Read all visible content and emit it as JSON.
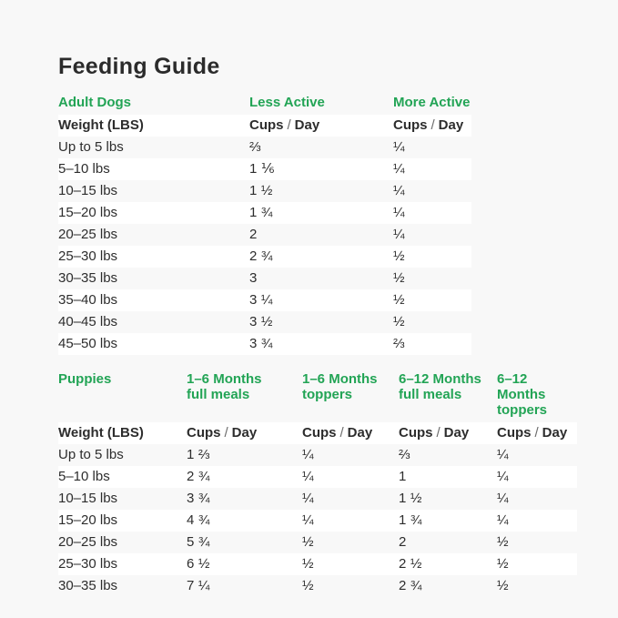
{
  "title": "Feeding Guide",
  "colors": {
    "accent_green": "#22a455",
    "text_dark": "#2d2d2d",
    "page_background": "#f8f8f8",
    "stripe_white": "#ffffff"
  },
  "labels": {
    "weight_header": "Weight (LBS)",
    "cups": "Cups",
    "slash": "/",
    "day": "Day"
  },
  "adult": {
    "section_label": "Adult Dogs",
    "columns": [
      "Less Active",
      "More Active"
    ]
  },
  "puppies": {
    "section_label": "Puppies",
    "columns": [
      {
        "line1": "1–6 Months",
        "line2": "full meals"
      },
      {
        "line1": "1–6 Months",
        "line2": "toppers"
      },
      {
        "line1": "6–12 Months",
        "line2": "full meals"
      },
      {
        "line1": "6–12 Months",
        "line2": "toppers"
      }
    ]
  },
  "chart_data": [
    {
      "type": "table",
      "title": "Adult Dogs",
      "columns": [
        "Weight (LBS)",
        "Less Active — Cups / Day",
        "More Active — Cups / Day"
      ],
      "rows": [
        [
          "Up to 5 lbs",
          "⅔",
          "¼"
        ],
        [
          "5–10 lbs",
          "1 ⅙",
          "¼"
        ],
        [
          "10–15 lbs",
          "1 ½",
          "¼"
        ],
        [
          "15–20 lbs",
          "1 ¾",
          "¼"
        ],
        [
          "20–25 lbs",
          "2",
          "¼"
        ],
        [
          "25–30 lbs",
          "2 ¾",
          "½"
        ],
        [
          "30–35 lbs",
          "3",
          "½"
        ],
        [
          "35–40 lbs",
          "3 ¼",
          "½"
        ],
        [
          "40–45 lbs",
          "3 ½",
          "½"
        ],
        [
          "45–50 lbs",
          "3 ¾",
          "⅔"
        ]
      ]
    },
    {
      "type": "table",
      "title": "Puppies",
      "columns": [
        "Weight (LBS)",
        "1–6 Months full meals — Cups / Day",
        "1–6 Months toppers — Cups / Day",
        "6–12 Months full meals — Cups / Day",
        "6–12 Months toppers — Cups / Day"
      ],
      "rows": [
        [
          "Up to 5 lbs",
          "1 ⅔",
          "¼",
          "⅔",
          "¼"
        ],
        [
          "5–10 lbs",
          "2 ¾",
          "¼",
          "1",
          "¼"
        ],
        [
          "10–15 lbs",
          "3 ¾",
          "¼",
          "1 ½",
          "¼"
        ],
        [
          "15–20 lbs",
          "4 ¾",
          "¼",
          "1 ¾",
          "¼"
        ],
        [
          "20–25 lbs",
          "5 ¾",
          "½",
          "2",
          "½"
        ],
        [
          "25–30 lbs",
          "6 ½",
          "½",
          "2 ½",
          "½"
        ],
        [
          "30–35 lbs",
          "7 ¼",
          "½",
          "2 ¾",
          "½"
        ]
      ]
    }
  ]
}
